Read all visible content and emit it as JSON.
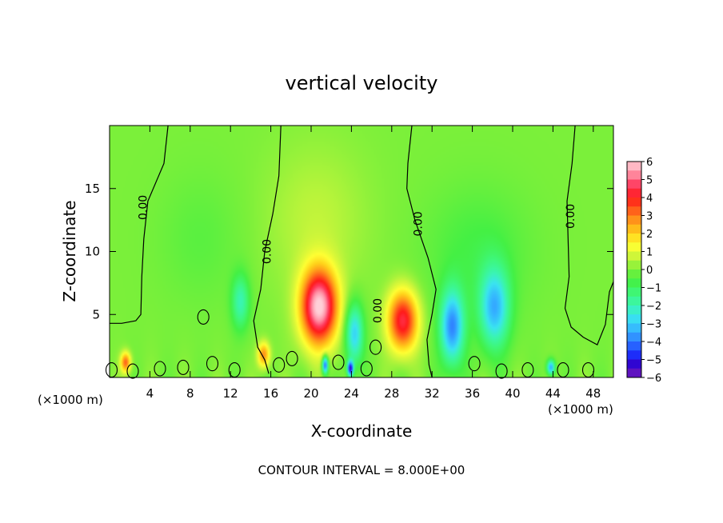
{
  "chart_data": {
    "type": "heatmap",
    "title": "vertical velocity",
    "xlabel": "X-coordinate",
    "ylabel": "Z-coordinate",
    "x_unit_left": "(×1000 m)",
    "x_unit_right": "(×1000 m)",
    "footer": "CONTOUR INTERVAL = 8.000E+00",
    "xlim": [
      0,
      50
    ],
    "ylim": [
      0,
      20
    ],
    "x_ticks": [
      4,
      8,
      12,
      16,
      20,
      24,
      28,
      32,
      36,
      40,
      44,
      48
    ],
    "y_ticks": [
      5,
      10,
      15
    ],
    "colorbar": {
      "range": [
        -6,
        6
      ],
      "labels": [
        "6",
        "5",
        "4",
        "3",
        "2",
        "1",
        "0",
        "−1",
        "−2",
        "−3",
        "−4",
        "−5",
        "−6"
      ],
      "colors": [
        "#7a1fb8",
        "#3300cc",
        "#1a33ff",
        "#2f7cff",
        "#35b6ff",
        "#3ae4f0",
        "#3af5b0",
        "#3ef77a",
        "#44f044",
        "#7bf03a",
        "#c8f53a",
        "#ffff33",
        "#ffd11a",
        "#ff9a1a",
        "#ff5a1a",
        "#ff1a1a",
        "#ff3a5e",
        "#ff8fa3",
        "#ffd0d8"
      ]
    },
    "contour_labels": [
      {
        "text": "0.00",
        "x": 3.3,
        "z": 13.5
      },
      {
        "text": "0.00",
        "x": 15.6,
        "z": 10.0
      },
      {
        "text": "0.00",
        "x": 26.6,
        "z": 5.3
      },
      {
        "text": "0.00",
        "x": 30.6,
        "z": 12.2
      },
      {
        "text": "0.00",
        "x": 45.7,
        "z": 12.8
      }
    ],
    "features": [
      {
        "kind": "updraft",
        "x": 20.8,
        "z": 5.6,
        "value": 6.0,
        "sx": 1.8,
        "sz": 3.0
      },
      {
        "kind": "updraft",
        "x": 29.1,
        "z": 4.5,
        "value": 4.4,
        "sx": 1.5,
        "sz": 2.4
      },
      {
        "kind": "updraft",
        "x": 15.3,
        "z": 1.8,
        "value": 2.8,
        "sx": 0.6,
        "sz": 1.0
      },
      {
        "kind": "updraft",
        "x": 1.6,
        "z": 1.2,
        "value": 3.2,
        "sx": 0.5,
        "sz": 0.8
      },
      {
        "kind": "updraft",
        "x": 20.5,
        "z": 12.5,
        "value": 0.6,
        "sx": 5.0,
        "sz": 6.0
      },
      {
        "kind": "downdraft",
        "x": 13.0,
        "z": 6.0,
        "value": -2.0,
        "sx": 0.9,
        "sz": 2.2
      },
      {
        "kind": "downdraft",
        "x": 24.3,
        "z": 3.5,
        "value": -3.0,
        "sx": 0.9,
        "sz": 2.4
      },
      {
        "kind": "downdraft",
        "x": 34.0,
        "z": 4.0,
        "value": -3.8,
        "sx": 1.2,
        "sz": 3.0
      },
      {
        "kind": "downdraft",
        "x": 38.2,
        "z": 5.5,
        "value": -3.2,
        "sx": 1.5,
        "sz": 3.2
      },
      {
        "kind": "downdraft",
        "x": 36.5,
        "z": 10.0,
        "value": -0.7,
        "sx": 5.0,
        "sz": 5.0
      },
      {
        "kind": "downdraft",
        "x": 9.0,
        "z": 11.0,
        "value": -0.4,
        "sx": 4.0,
        "sz": 5.0
      },
      {
        "kind": "downdraft",
        "x": 21.4,
        "z": 1.0,
        "value": -4.5,
        "sx": 0.3,
        "sz": 0.7
      },
      {
        "kind": "downdraft",
        "x": 23.9,
        "z": 0.7,
        "value": -5.0,
        "sx": 0.3,
        "sz": 0.6
      },
      {
        "kind": "downdraft",
        "x": 43.8,
        "z": 0.8,
        "value": -3.5,
        "sx": 0.4,
        "sz": 0.6
      }
    ]
  }
}
